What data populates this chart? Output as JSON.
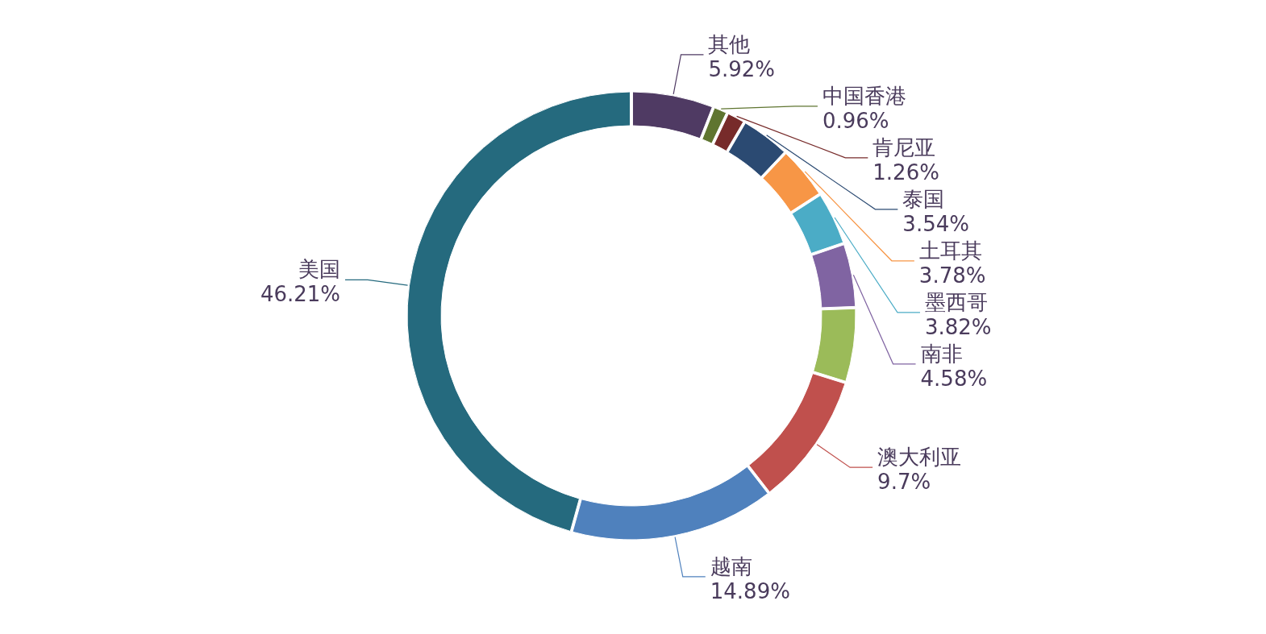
{
  "chart_data": {
    "type": "donut",
    "categories": [
      "其他",
      "中国香港",
      "肯尼亚",
      "泰国",
      "土耳其",
      "墨西哥",
      "南非",
      null,
      "澳大利亚",
      "越南",
      "美国"
    ],
    "values": [
      5.92,
      0.96,
      1.26,
      3.54,
      3.78,
      3.82,
      4.58,
      5.34,
      9.7,
      14.89,
      46.21
    ],
    "value_labels": [
      "5.92%",
      "0.96%",
      "1.26%",
      "3.54%",
      "3.78%",
      "3.82%",
      "4.58%",
      null,
      "9.7%",
      "14.89%",
      "46.21%"
    ],
    "colors": [
      "#4f3a63",
      "#5f7530",
      "#772b2a",
      "#2b4a72",
      "#f79646",
      "#4bacc6",
      "#8064a2",
      "#9bbb59",
      "#c0504d",
      "#4f81bd",
      "#256a7e"
    ]
  }
}
